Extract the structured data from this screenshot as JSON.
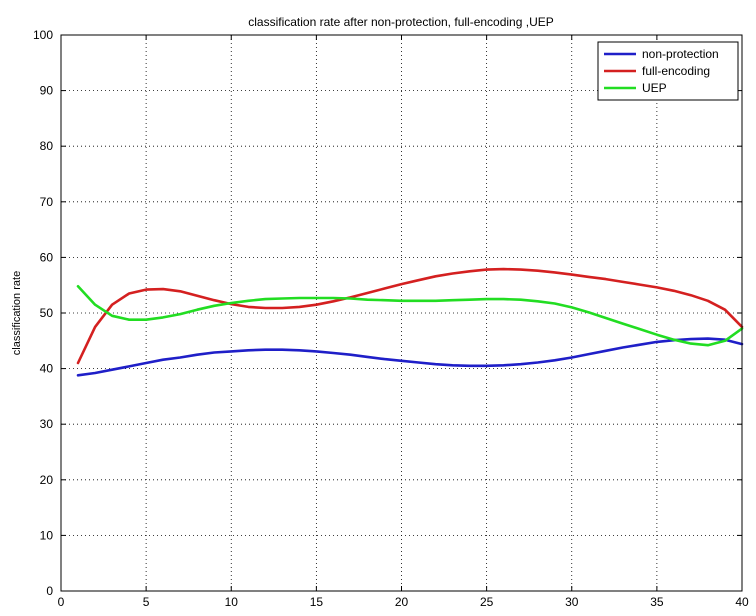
{
  "chart_data": {
    "type": "line",
    "title": "classification rate after non-protection, full-encoding ,UEP",
    "xlabel": "",
    "ylabel": "classification rate",
    "xlim": [
      0,
      40
    ],
    "ylim": [
      0,
      100
    ],
    "xticks": [
      0,
      5,
      10,
      15,
      20,
      25,
      30,
      35,
      40
    ],
    "yticks": [
      0,
      10,
      20,
      30,
      40,
      50,
      60,
      70,
      80,
      90,
      100
    ],
    "grid": true,
    "legend_position": "top-right",
    "series": [
      {
        "name": "non-protection",
        "color": "#1f1fc8",
        "x": [
          1,
          2,
          3,
          4,
          5,
          6,
          7,
          8,
          9,
          10,
          11,
          12,
          13,
          14,
          15,
          16,
          17,
          18,
          19,
          20,
          21,
          22,
          23,
          24,
          25,
          26,
          27,
          28,
          29,
          30,
          31,
          32,
          33,
          34,
          35,
          36,
          37,
          38,
          39,
          40
        ],
        "y": [
          38.8,
          39.2,
          39.8,
          40.4,
          41.0,
          41.6,
          42.0,
          42.5,
          42.9,
          43.1,
          43.3,
          43.4,
          43.4,
          43.3,
          43.1,
          42.8,
          42.5,
          42.1,
          41.7,
          41.4,
          41.1,
          40.8,
          40.6,
          40.5,
          40.5,
          40.6,
          40.8,
          41.1,
          41.5,
          42.0,
          42.6,
          43.2,
          43.8,
          44.3,
          44.8,
          45.1,
          45.3,
          45.4,
          45.2,
          44.4
        ]
      },
      {
        "name": "full-encoding",
        "color": "#d42020",
        "x": [
          1,
          2,
          3,
          4,
          5,
          6,
          7,
          8,
          9,
          10,
          11,
          12,
          13,
          14,
          15,
          16,
          17,
          18,
          19,
          20,
          21,
          22,
          23,
          24,
          25,
          26,
          27,
          28,
          29,
          30,
          31,
          32,
          33,
          34,
          35,
          36,
          37,
          38,
          39,
          40
        ],
        "y": [
          41.0,
          47.5,
          51.5,
          53.5,
          54.2,
          54.3,
          53.9,
          53.1,
          52.3,
          51.6,
          51.1,
          50.9,
          50.9,
          51.1,
          51.5,
          52.1,
          52.8,
          53.6,
          54.4,
          55.2,
          55.9,
          56.6,
          57.1,
          57.5,
          57.8,
          57.9,
          57.8,
          57.6,
          57.3,
          56.9,
          56.5,
          56.1,
          55.6,
          55.1,
          54.6,
          54.0,
          53.2,
          52.2,
          50.6,
          47.5
        ]
      },
      {
        "name": "UEP",
        "color": "#22dd22",
        "x": [
          1,
          2,
          3,
          4,
          5,
          6,
          7,
          8,
          9,
          10,
          11,
          12,
          13,
          14,
          15,
          16,
          17,
          18,
          19,
          20,
          21,
          22,
          23,
          24,
          25,
          26,
          27,
          28,
          29,
          30,
          31,
          32,
          33,
          34,
          35,
          36,
          37,
          38,
          39,
          40
        ],
        "y": [
          54.8,
          51.5,
          49.5,
          48.8,
          48.8,
          49.2,
          49.8,
          50.6,
          51.3,
          51.8,
          52.2,
          52.5,
          52.6,
          52.7,
          52.7,
          52.7,
          52.6,
          52.4,
          52.3,
          52.2,
          52.2,
          52.2,
          52.3,
          52.4,
          52.5,
          52.5,
          52.4,
          52.1,
          51.7,
          51.0,
          50.1,
          49.1,
          48.1,
          47.1,
          46.1,
          45.2,
          44.5,
          44.2,
          45.0,
          47.2
        ]
      }
    ]
  }
}
